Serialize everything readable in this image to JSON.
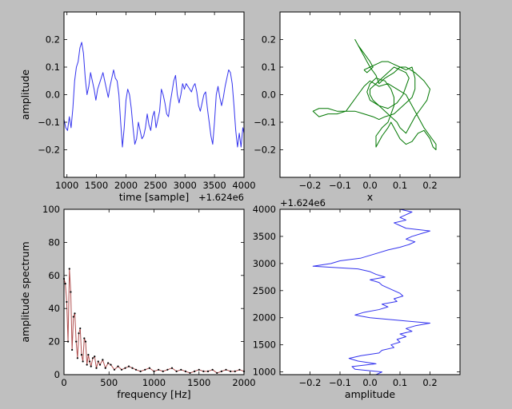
{
  "figure": {
    "background": "#bfbfbf"
  },
  "chart_data": [
    {
      "id": "waveform",
      "type": "line",
      "title": "",
      "xlabel": "time [sample]",
      "ylabel": "amplitude",
      "x_offset_label": "+1.624e6",
      "xlim": [
        950,
        4000
      ],
      "ylim": [
        -0.3,
        0.3
      ],
      "xticks": [
        1000,
        1500,
        2000,
        2500,
        3000,
        3500,
        4000
      ],
      "yticks": [
        -0.2,
        -0.1,
        0.0,
        0.1,
        0.2
      ],
      "ytick_labels": [
        "−0.2",
        "−0.1",
        "0.0",
        "0.1",
        "0.2"
      ],
      "grid": false,
      "series": [
        {
          "color": "#3333ee",
          "x": [
            950,
            980,
            1010,
            1040,
            1070,
            1100,
            1130,
            1160,
            1190,
            1220,
            1250,
            1280,
            1310,
            1340,
            1370,
            1400,
            1430,
            1460,
            1490,
            1520,
            1550,
            1580,
            1610,
            1640,
            1670,
            1700,
            1730,
            1760,
            1790,
            1820,
            1850,
            1880,
            1910,
            1940,
            1970,
            2000,
            2030,
            2060,
            2090,
            2120,
            2150,
            2180,
            2210,
            2240,
            2270,
            2300,
            2330,
            2360,
            2390,
            2420,
            2450,
            2480,
            2510,
            2540,
            2570,
            2600,
            2630,
            2660,
            2690,
            2720,
            2750,
            2780,
            2810,
            2840,
            2870,
            2900,
            2930,
            2960,
            2990,
            3020,
            3050,
            3080,
            3110,
            3140,
            3170,
            3200,
            3230,
            3260,
            3290,
            3320,
            3350,
            3380,
            3410,
            3440,
            3470,
            3500,
            3530,
            3560,
            3590,
            3620,
            3650,
            3680,
            3710,
            3740,
            3770,
            3800,
            3830,
            3860,
            3890,
            3920,
            3950,
            3980,
            4000
          ],
          "y": [
            -0.09,
            -0.12,
            -0.13,
            -0.08,
            -0.12,
            -0.05,
            0.05,
            0.1,
            0.12,
            0.17,
            0.19,
            0.15,
            0.06,
            0.0,
            0.03,
            0.08,
            0.05,
            0.02,
            -0.02,
            0.02,
            0.04,
            0.06,
            0.08,
            0.05,
            0.02,
            -0.01,
            0.03,
            0.06,
            0.09,
            0.06,
            0.05,
            0.0,
            -0.1,
            -0.19,
            -0.12,
            -0.02,
            0.02,
            0.0,
            -0.05,
            -0.12,
            -0.18,
            -0.16,
            -0.1,
            -0.13,
            -0.16,
            -0.15,
            -0.12,
            -0.07,
            -0.11,
            -0.13,
            -0.08,
            -0.06,
            -0.12,
            -0.09,
            -0.06,
            0.02,
            0.0,
            -0.03,
            -0.07,
            -0.08,
            -0.03,
            0.01,
            0.05,
            0.07,
            0.0,
            -0.03,
            0.0,
            0.04,
            0.02,
            0.04,
            0.03,
            0.02,
            0.01,
            0.03,
            0.04,
            0.01,
            -0.04,
            -0.06,
            -0.03,
            0.0,
            0.01,
            -0.05,
            -0.1,
            -0.15,
            -0.18,
            -0.1,
            0.0,
            0.03,
            -0.01,
            -0.04,
            -0.01,
            0.03,
            0.06,
            0.09,
            0.08,
            0.04,
            -0.04,
            -0.13,
            -0.19,
            -0.14,
            -0.19,
            -0.12,
            -0.14
          ]
        }
      ]
    },
    {
      "id": "xy-plot",
      "type": "line",
      "title": "",
      "xlabel": "x",
      "ylabel": "",
      "xlim": [
        -0.3,
        0.3
      ],
      "ylim": [
        -0.3,
        0.3
      ],
      "xticks": [
        -0.2,
        -0.1,
        0.0,
        0.1,
        0.2
      ],
      "xtick_labels": [
        "−0.2",
        "−0.1",
        "0.0",
        "0.1",
        "0.2"
      ],
      "yticks": [
        -0.2,
        -0.1,
        0.0,
        0.1,
        0.2
      ],
      "ytick_labels": [
        "−0.2",
        "−0.1",
        "0.0",
        "0.1",
        "0.2"
      ],
      "grid": false,
      "series": [
        {
          "color": "#007700",
          "x": [
            -0.02,
            0.0,
            0.02,
            0.04,
            0.06,
            0.08,
            0.1,
            0.12,
            0.14,
            0.15,
            0.15,
            0.14,
            0.12,
            0.1,
            0.08,
            0.05,
            0.03,
            0.01,
            -0.02,
            -0.05,
            -0.08,
            -0.11,
            -0.14,
            -0.17,
            -0.19,
            -0.17,
            -0.14,
            -0.11,
            -0.08,
            -0.06,
            -0.04,
            -0.02,
            0.0,
            0.03,
            0.06,
            0.09,
            0.12,
            0.14,
            0.16,
            0.18,
            0.2,
            0.22,
            0.22,
            0.21,
            0.2,
            0.18,
            0.16,
            0.14,
            0.12,
            0.1,
            0.08,
            0.07,
            0.06,
            0.04,
            0.03,
            0.02,
            0.02,
            0.04,
            0.06,
            0.07,
            0.08,
            0.08,
            0.07,
            0.05,
            0.02,
            0.0,
            -0.01,
            0.0,
            0.03,
            0.06,
            0.09,
            0.11,
            0.12,
            0.13,
            0.12,
            0.1,
            0.08,
            0.06,
            0.04,
            0.02,
            0.0,
            0.0,
            0.01,
            0.03,
            0.05,
            0.07,
            0.09,
            0.1,
            0.11,
            0.12,
            0.13,
            0.14,
            0.15,
            0.17,
            0.19,
            0.2,
            0.18,
            0.15,
            0.12,
            0.1,
            0.08,
            0.05,
            0.03,
            0.02,
            0.0,
            -0.02,
            -0.04,
            -0.05,
            -0.04,
            -0.02,
            0.0,
            0.01,
            0.0,
            -0.01,
            -0.02
          ],
          "y": [
            0.09,
            0.1,
            0.11,
            0.12,
            0.12,
            0.11,
            0.1,
            0.09,
            0.1,
            0.06,
            0.02,
            -0.01,
            -0.03,
            -0.05,
            -0.07,
            -0.08,
            -0.09,
            -0.08,
            -0.07,
            -0.06,
            -0.06,
            -0.07,
            -0.07,
            -0.08,
            -0.06,
            -0.05,
            -0.05,
            -0.06,
            -0.06,
            -0.03,
            0.0,
            0.03,
            0.05,
            0.03,
            0.04,
            0.02,
            0.0,
            -0.04,
            -0.08,
            -0.12,
            -0.15,
            -0.18,
            -0.2,
            -0.19,
            -0.16,
            -0.13,
            -0.14,
            -0.17,
            -0.18,
            -0.16,
            -0.12,
            -0.1,
            -0.12,
            -0.15,
            -0.17,
            -0.19,
            -0.15,
            -0.12,
            -0.1,
            -0.07,
            -0.04,
            -0.01,
            0.02,
            0.05,
            0.06,
            0.04,
            0.01,
            -0.02,
            -0.04,
            -0.05,
            -0.03,
            0.0,
            0.03,
            0.06,
            0.08,
            0.09,
            0.1,
            0.08,
            0.06,
            0.04,
            0.02,
            0.0,
            -0.02,
            -0.04,
            -0.06,
            -0.08,
            -0.1,
            -0.12,
            -0.13,
            -0.14,
            -0.12,
            -0.1,
            -0.08,
            -0.05,
            -0.02,
            0.02,
            0.05,
            0.08,
            0.1,
            0.1,
            0.08,
            0.06,
            0.04,
            0.07,
            0.1,
            0.14,
            0.18,
            0.2,
            0.18,
            0.15,
            0.12,
            0.1,
            0.09,
            0.08,
            0.09
          ]
        }
      ]
    },
    {
      "id": "spectrum",
      "type": "line",
      "title": "",
      "xlabel": "frequency [Hz]",
      "ylabel": "amplitude spectrum",
      "xlim": [
        0,
        2000
      ],
      "ylim": [
        0,
        100
      ],
      "xticks": [
        0,
        500,
        1000,
        1500,
        2000
      ],
      "yticks": [
        0,
        20,
        40,
        60,
        80,
        100
      ],
      "grid": false,
      "series": [
        {
          "color": "#b05050",
          "marker_color": "#000000",
          "x": [
            0,
            15,
            30,
            45,
            60,
            75,
            90,
            105,
            120,
            135,
            150,
            165,
            180,
            195,
            210,
            225,
            240,
            255,
            270,
            285,
            300,
            320,
            340,
            360,
            380,
            400,
            430,
            460,
            490,
            520,
            560,
            600,
            640,
            680,
            720,
            760,
            800,
            850,
            900,
            950,
            1000,
            1050,
            1100,
            1150,
            1200,
            1250,
            1300,
            1350,
            1400,
            1450,
            1500,
            1550,
            1600,
            1650,
            1700,
            1750,
            1800,
            1850,
            1900,
            1950,
            2000
          ],
          "y": [
            58,
            55,
            44,
            20,
            64,
            50,
            15,
            35,
            37,
            20,
            10,
            25,
            28,
            12,
            8,
            22,
            20,
            6,
            12,
            8,
            5,
            10,
            11,
            4,
            8,
            6,
            9,
            4,
            7,
            6,
            3,
            5,
            3,
            4,
            5,
            4,
            3,
            2,
            3,
            4,
            2,
            3,
            2,
            3,
            4,
            2,
            3,
            2,
            1,
            2,
            3,
            2,
            2,
            3,
            1,
            2,
            3,
            2,
            2,
            3,
            2
          ]
        }
      ]
    },
    {
      "id": "waveform-rotated",
      "type": "line",
      "title": "",
      "xlabel": "amplitude",
      "ylabel": "",
      "y_offset_label": "+1.624e6",
      "xlim": [
        -0.3,
        0.3
      ],
      "ylim": [
        950,
        4000
      ],
      "xticks": [
        -0.2,
        -0.1,
        0.0,
        0.1,
        0.2
      ],
      "xtick_labels": [
        "−0.2",
        "−0.1",
        "0.0",
        "0.1",
        "0.2"
      ],
      "yticks": [
        1000,
        1500,
        2000,
        2500,
        3000,
        3500,
        4000
      ],
      "grid": false,
      "series": [
        {
          "color": "#3333ee",
          "y": [
            950,
            1000,
            1050,
            1100,
            1150,
            1200,
            1250,
            1300,
            1350,
            1400,
            1450,
            1500,
            1550,
            1600,
            1650,
            1700,
            1750,
            1800,
            1850,
            1900,
            1950,
            2000,
            2050,
            2100,
            2150,
            2200,
            2250,
            2300,
            2350,
            2400,
            2450,
            2500,
            2550,
            2600,
            2650,
            2700,
            2750,
            2800,
            2850,
            2900,
            2950,
            3000,
            3050,
            3100,
            3150,
            3200,
            3250,
            3300,
            3350,
            3400,
            3450,
            3500,
            3550,
            3600,
            3650,
            3700,
            3750,
            3800,
            3850,
            3900,
            3950,
            4000
          ],
          "x": [
            0.02,
            0.04,
            -0.05,
            -0.06,
            0.02,
            -0.04,
            -0.07,
            -0.03,
            0.03,
            0.04,
            0.08,
            0.07,
            0.1,
            0.09,
            0.12,
            0.1,
            0.14,
            0.12,
            0.15,
            0.2,
            0.1,
            0.0,
            -0.05,
            -0.02,
            0.03,
            0.06,
            0.04,
            0.09,
            0.08,
            0.11,
            0.1,
            0.08,
            0.06,
            0.04,
            0.03,
            0.0,
            0.05,
            0.02,
            0.0,
            -0.04,
            -0.19,
            -0.13,
            -0.1,
            -0.03,
            0.0,
            0.03,
            0.06,
            0.1,
            0.13,
            0.15,
            0.12,
            0.14,
            0.17,
            0.2,
            0.12,
            0.1,
            0.08,
            0.12,
            0.1,
            0.12,
            0.14,
            0.1
          ]
        }
      ]
    }
  ]
}
